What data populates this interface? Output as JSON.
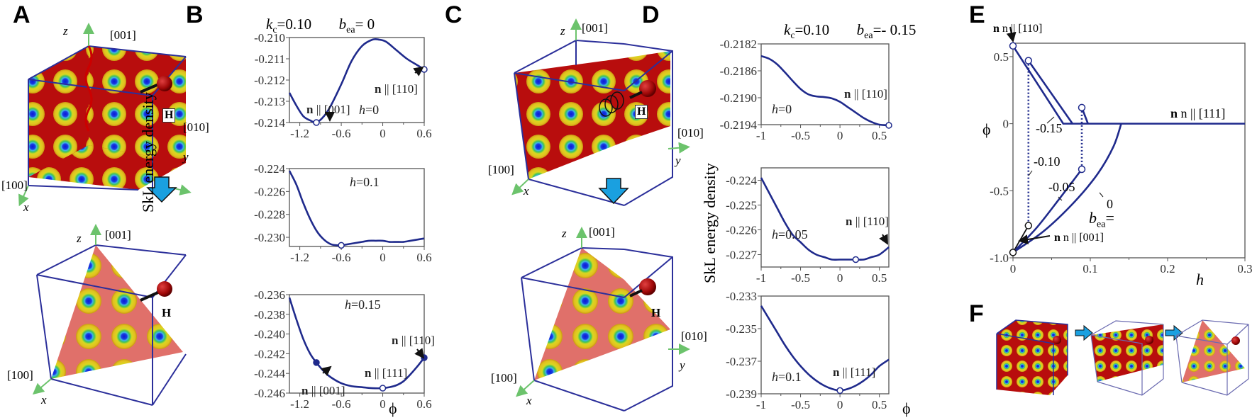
{
  "panels": {
    "A": {
      "letter": "A"
    },
    "B": {
      "letter": "B",
      "title_kc": "k",
      "title_kc_sub": "c",
      "title_kc_val": "=0.10",
      "title_bea": "b",
      "title_bea_sub": "ea",
      "title_bea_val": "= 0",
      "ylabel": "SkL energy density",
      "xlabel": "ϕ"
    },
    "C": {
      "letter": "C"
    },
    "D": {
      "letter": "D",
      "title_kc": "k",
      "title_kc_sub": "c",
      "title_kc_val": "=0.10",
      "title_bea": "b",
      "title_bea_sub": "ea",
      "title_bea_val": "=- 0.15",
      "ylabel": "SkL energy density",
      "xlabel": "ϕ"
    },
    "E": {
      "letter": "E",
      "ylabel": "ϕ",
      "xlabel": "h"
    },
    "F": {
      "letter": "F"
    }
  },
  "cube_labels": {
    "z": "z",
    "x": "x",
    "y": "y",
    "d001": "[001]",
    "d100": "[100]",
    "d010": "[010]",
    "field": "H"
  },
  "colors": {
    "curve": "#1f2a8c",
    "axis": "#555555",
    "skl_red": "#b80d0d",
    "plane_pink": "#e0706a",
    "cube_edge": "#2b2f9a",
    "arrow_blue": "#1aa0e0",
    "axis_green": "#6cc36c"
  },
  "chart_data": [
    {
      "id": "B1",
      "type": "line",
      "title": "kc=0.10  bea=0",
      "annotation": "h=0",
      "xlabel": "",
      "ylabel": "SkL energy density",
      "xlim": [
        -1.35,
        0.6
      ],
      "ylim": [
        -0.214,
        -0.21
      ],
      "xticks": [
        -1.2,
        -0.6,
        0,
        0.6
      ],
      "yticks": [
        -0.21,
        -0.211,
        -0.212,
        -0.213,
        -0.214
      ],
      "x": [
        -1.35,
        -1.25,
        -1.15,
        -1.05,
        -0.96,
        -0.85,
        -0.75,
        -0.6,
        -0.45,
        -0.3,
        -0.15,
        -0.05,
        0.05,
        0.2,
        0.35,
        0.5,
        0.6
      ],
      "y": [
        -0.2126,
        -0.2132,
        -0.2137,
        -0.2139,
        -0.214,
        -0.2137,
        -0.2132,
        -0.2122,
        -0.2111,
        -0.2104,
        -0.2101,
        -0.2101,
        -0.2102,
        -0.2106,
        -0.211,
        -0.2113,
        -0.2115
      ],
      "markers": [
        {
          "x": -0.96,
          "y": -0.214,
          "label": "n || [001]",
          "fill": "open"
        },
        {
          "x": 0.6,
          "y": -0.2115,
          "label": "n || [110]",
          "fill": "open"
        }
      ]
    },
    {
      "id": "B2",
      "type": "line",
      "annotation": "h=0.1",
      "xlim": [
        -1.35,
        0.6
      ],
      "ylim": [
        -0.2308,
        -0.224
      ],
      "xticks": [
        -1.2,
        -0.6,
        0,
        0.6
      ],
      "yticks": [
        -0.224,
        -0.226,
        -0.228,
        -0.23
      ],
      "x": [
        -1.35,
        -1.25,
        -1.15,
        -1.05,
        -0.95,
        -0.85,
        -0.75,
        -0.65,
        -0.6,
        -0.5,
        -0.4,
        -0.3,
        -0.2,
        -0.1,
        0,
        0.1,
        0.2,
        0.3,
        0.4,
        0.5,
        0.6
      ],
      "y": [
        -0.2242,
        -0.2254,
        -0.227,
        -0.2284,
        -0.2295,
        -0.2302,
        -0.2306,
        -0.2307,
        -0.2307,
        -0.2306,
        -0.2305,
        -0.2304,
        -0.2303,
        -0.2303,
        -0.2303,
        -0.2304,
        -0.2304,
        -0.2304,
        -0.2303,
        -0.2302,
        -0.2301
      ],
      "markers": [
        {
          "x": -0.6,
          "y": -0.2307,
          "label": "",
          "fill": "open"
        }
      ]
    },
    {
      "id": "B3",
      "type": "line",
      "annotation": "h=0.15",
      "xlabel": "ϕ",
      "xlim": [
        -1.35,
        0.6
      ],
      "ylim": [
        -0.246,
        -0.236
      ],
      "xticks": [
        -1.2,
        -0.6,
        0,
        0.6
      ],
      "yticks": [
        -0.236,
        -0.238,
        -0.24,
        -0.242,
        -0.244,
        -0.246
      ],
      "x": [
        -1.35,
        -1.25,
        -1.15,
        -1.05,
        -0.96,
        -0.85,
        -0.75,
        -0.6,
        -0.45,
        -0.3,
        -0.15,
        0,
        0.1,
        0.2,
        0.3,
        0.4,
        0.5,
        0.6
      ],
      "y": [
        -0.2363,
        -0.2385,
        -0.2405,
        -0.242,
        -0.2429,
        -0.2438,
        -0.2444,
        -0.245,
        -0.2453,
        -0.2454,
        -0.2455,
        -0.2455,
        -0.2454,
        -0.2452,
        -0.2448,
        -0.2441,
        -0.2433,
        -0.2424
      ],
      "markers": [
        {
          "x": -0.96,
          "y": -0.2429,
          "label": "n || [001]",
          "fill": "solid"
        },
        {
          "x": 0,
          "y": -0.2455,
          "label": "n || [111]",
          "fill": "open"
        },
        {
          "x": 0.6,
          "y": -0.2424,
          "label": "n || [110]",
          "fill": "solid"
        }
      ]
    },
    {
      "id": "D1",
      "type": "line",
      "title": "kc=0.10  bea=-0.15",
      "annotation": "h=0",
      "xlim": [
        -1.0,
        0.62
      ],
      "ylim": [
        -0.2194,
        -0.2182
      ],
      "xticks": [
        -1.0,
        -0.5,
        0,
        0.5
      ],
      "yticks": [
        -0.2182,
        -0.2186,
        -0.219,
        -0.2194
      ],
      "x": [
        -1.0,
        -0.9,
        -0.8,
        -0.7,
        -0.6,
        -0.5,
        -0.4,
        -0.3,
        -0.2,
        -0.1,
        0,
        0.1,
        0.2,
        0.3,
        0.4,
        0.5,
        0.62
      ],
      "y": [
        -0.21838,
        -0.21842,
        -0.2185,
        -0.21862,
        -0.21875,
        -0.21887,
        -0.21895,
        -0.21898,
        -0.21899,
        -0.21901,
        -0.21906,
        -0.21914,
        -0.21922,
        -0.2193,
        -0.21936,
        -0.2194,
        -0.21941
      ],
      "markers": [
        {
          "x": 0.62,
          "y": -0.21941,
          "label": "n || [110]",
          "fill": "open"
        }
      ]
    },
    {
      "id": "D2",
      "type": "line",
      "annotation": "h=0.05",
      "xlim": [
        -1.0,
        0.62
      ],
      "ylim": [
        -0.2275,
        -0.2235
      ],
      "xticks": [
        -1.0,
        -0.5,
        0,
        0.5
      ],
      "yticks": [
        -0.224,
        -0.225,
        -0.226,
        -0.227
      ],
      "x": [
        -1.0,
        -0.9,
        -0.8,
        -0.7,
        -0.6,
        -0.5,
        -0.4,
        -0.3,
        -0.2,
        -0.1,
        0,
        0.1,
        0.2,
        0.3,
        0.4,
        0.5,
        0.62
      ],
      "y": [
        -0.2239,
        -0.2245,
        -0.2251,
        -0.2257,
        -0.2262,
        -0.2265,
        -0.2268,
        -0.227,
        -0.2271,
        -0.2272,
        -0.2272,
        -0.2272,
        -0.2272,
        -0.2272,
        -0.2271,
        -0.227,
        -0.2267
      ],
      "markers": [
        {
          "x": 0.2,
          "y": -0.2272,
          "label": "",
          "fill": "open"
        },
        {
          "x": 0.62,
          "y": -0.2267,
          "label": "n || [110]",
          "fill": "none"
        }
      ]
    },
    {
      "id": "D3",
      "type": "line",
      "annotation": "h=0.1",
      "xlabel": "ϕ",
      "xlim": [
        -1.0,
        0.62
      ],
      "ylim": [
        -0.239,
        -0.233
      ],
      "xticks": [
        -1.0,
        -0.5,
        0,
        0.5
      ],
      "yticks": [
        -0.233,
        -0.235,
        -0.237,
        -0.239
      ],
      "x": [
        -1.0,
        -0.9,
        -0.8,
        -0.7,
        -0.6,
        -0.5,
        -0.4,
        -0.3,
        -0.2,
        -0.1,
        0,
        0.1,
        0.2,
        0.3,
        0.4,
        0.5,
        0.62
      ],
      "y": [
        -0.2336,
        -0.2344,
        -0.2352,
        -0.236,
        -0.2367,
        -0.2373,
        -0.2378,
        -0.2382,
        -0.2385,
        -0.2387,
        -0.2388,
        -0.2387,
        -0.2385,
        -0.2382,
        -0.2378,
        -0.2373,
        -0.2369
      ],
      "markers": [
        {
          "x": 0,
          "y": -0.2388,
          "label": "n || [111]",
          "fill": "open"
        }
      ]
    },
    {
      "id": "E",
      "type": "line",
      "xlabel": "h",
      "ylabel": "ϕ",
      "xlim": [
        0,
        0.3
      ],
      "ylim": [
        -1.0,
        0.6
      ],
      "xticks": [
        0,
        0.1,
        0.2,
        0.3
      ],
      "yticks": [
        0.5,
        0,
        -0.5,
        -1.0
      ],
      "legend_title": "bea=",
      "series": [
        {
          "name": "-0.15",
          "style": "solid",
          "x": [
            0,
            0.065,
            0.3
          ],
          "y": [
            0.58,
            0,
            0
          ]
        },
        {
          "name": "-0.10",
          "style": "solid",
          "x": [
            0.02,
            0.077
          ],
          "y": [
            0.47,
            0
          ]
        },
        {
          "name": "-0.10 (jump)",
          "style": "dotted",
          "x": [
            0.02,
            0.02
          ],
          "y": [
            0.47,
            -0.76
          ]
        },
        {
          "name": "-0.10 low",
          "style": "solid-black",
          "x": [
            0,
            0.02
          ],
          "y": [
            -0.96,
            -0.76
          ]
        },
        {
          "name": "-0.05 upper",
          "style": "solid",
          "x": [
            0.089,
            0.097
          ],
          "y": [
            0.12,
            0
          ]
        },
        {
          "name": "-0.05 (jump)",
          "style": "dotted",
          "x": [
            0.089,
            0.089
          ],
          "y": [
            0.12,
            -0.34
          ]
        },
        {
          "name": "-0.05",
          "style": "solid",
          "x": [
            0,
            0.03,
            0.06,
            0.089
          ],
          "y": [
            -0.96,
            -0.78,
            -0.56,
            -0.34
          ]
        },
        {
          "name": "0",
          "style": "solid",
          "x": [
            0,
            0.04,
            0.08,
            0.11,
            0.13,
            0.14
          ],
          "y": [
            -0.96,
            -0.8,
            -0.58,
            -0.37,
            -0.17,
            0
          ]
        }
      ],
      "annotations": [
        {
          "text": "n || [110]",
          "x": 0,
          "y": 0.58
        },
        {
          "text": "n || [111]",
          "x": 0.25,
          "y": 0.05
        },
        {
          "text": "n || [001]",
          "x": 0.05,
          "y": -0.96
        },
        {
          "text": "-0.15"
        },
        {
          "text": "-0.10"
        },
        {
          "text": "-0.05"
        },
        {
          "text": "0"
        }
      ],
      "open_markers": [
        {
          "x": 0,
          "y": 0.58
        },
        {
          "x": 0.02,
          "y": 0.47
        },
        {
          "x": 0.089,
          "y": 0.12
        },
        {
          "x": 0.089,
          "y": -0.34
        },
        {
          "x": 0.02,
          "y": -0.76
        },
        {
          "x": 0,
          "y": -0.96
        }
      ]
    }
  ],
  "labels": {
    "n001": "n || [001]",
    "n110": "n || [110]",
    "n111": "n || [111]",
    "bea_eq": "b",
    "bea_sub": "ea",
    "bea_tail": "=",
    "e_m015": "-0.15",
    "e_m010": "-0.10",
    "e_m005": "-0.05",
    "e_0": "0"
  }
}
